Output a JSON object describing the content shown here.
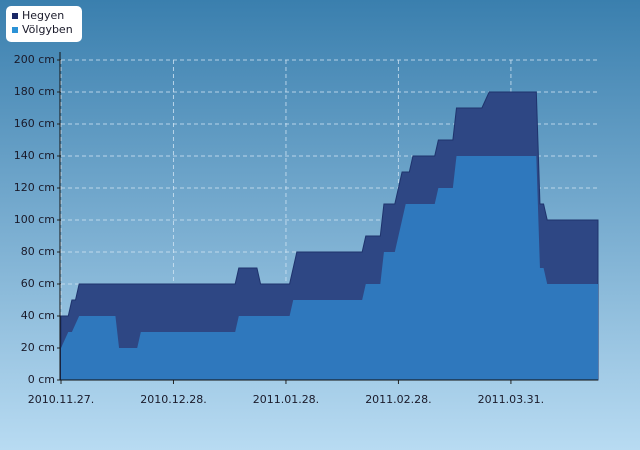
{
  "chart_data": {
    "type": "area",
    "x": [
      "2010-11-27",
      "2010-11-28",
      "2010-11-29",
      "2010-11-30",
      "2010-12-01",
      "2010-12-02",
      "2010-12-12",
      "2010-12-13",
      "2010-12-18",
      "2010-12-19",
      "2011-01-14",
      "2011-01-15",
      "2011-01-20",
      "2011-01-21",
      "2011-01-29",
      "2011-01-30",
      "2011-01-31",
      "2011-02-18",
      "2011-02-19",
      "2011-02-23",
      "2011-02-24",
      "2011-02-27",
      "2011-02-28",
      "2011-03-01",
      "2011-03-02",
      "2011-03-03",
      "2011-03-04",
      "2011-03-10",
      "2011-03-11",
      "2011-03-15",
      "2011-03-16",
      "2011-03-23",
      "2011-03-25",
      "2011-04-07",
      "2011-04-08",
      "2011-04-09",
      "2011-04-10",
      "2011-04-24"
    ],
    "series": [
      {
        "name": "Hegyen",
        "color": "#2e4784",
        "legend_color": "#1a2766",
        "values": [
          40,
          40,
          40,
          50,
          50,
          60,
          60,
          60,
          60,
          60,
          60,
          70,
          70,
          60,
          60,
          70,
          80,
          80,
          90,
          90,
          110,
          110,
          120,
          130,
          130,
          130,
          140,
          140,
          150,
          150,
          170,
          170,
          180,
          180,
          110,
          110,
          100,
          100
        ]
      },
      {
        "name": "Völgyben",
        "color": "#2f78bd",
        "legend_color": "#2b92d6",
        "values": [
          20,
          25,
          30,
          30,
          35,
          40,
          40,
          20,
          20,
          30,
          30,
          40,
          40,
          40,
          40,
          50,
          50,
          50,
          60,
          60,
          80,
          80,
          90,
          100,
          110,
          110,
          110,
          110,
          120,
          120,
          140,
          140,
          140,
          140,
          70,
          70,
          60,
          60
        ]
      }
    ],
    "xlim": [
      "2010-11-27",
      "2011-04-24"
    ],
    "xticks": [
      {
        "value": "2010-11-27",
        "label": "2010.11.27."
      },
      {
        "value": "2010-12-28",
        "label": "2010.12.28."
      },
      {
        "value": "2011-01-28",
        "label": "2011.01.28."
      },
      {
        "value": "2011-02-28",
        "label": "2011.02.28."
      },
      {
        "value": "2011-03-31",
        "label": "2011.03.31."
      }
    ],
    "ylim": [
      0,
      200
    ],
    "yticks": [
      {
        "value": 0,
        "label": "0 cm"
      },
      {
        "value": 20,
        "label": "20 cm"
      },
      {
        "value": 40,
        "label": "40 cm"
      },
      {
        "value": 60,
        "label": "60 cm"
      },
      {
        "value": 80,
        "label": "80 cm"
      },
      {
        "value": 100,
        "label": "100 cm"
      },
      {
        "value": 120,
        "label": "120 cm"
      },
      {
        "value": 140,
        "label": "140 cm"
      },
      {
        "value": 160,
        "label": "160 cm"
      },
      {
        "value": 180,
        "label": "180 cm"
      },
      {
        "value": 200,
        "label": "200 cm"
      }
    ],
    "grid": true,
    "legend": "top-left"
  }
}
